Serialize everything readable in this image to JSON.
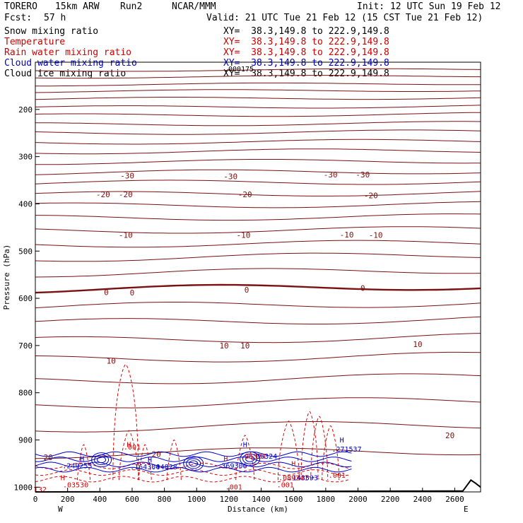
{
  "header": {
    "model": "TORERO",
    "resolution": "15km ARW",
    "run": "Run2",
    "source": "NCAR/MMM",
    "init": "Init: 12 UTC Sun 19 Feb 12",
    "fcst_label": "Fcst:",
    "fcst_value": "57 h",
    "valid": "Valid: 21 UTC Tue 21 Feb 12 (15 CST Tue 21 Feb 12)"
  },
  "legend": [
    {
      "label": "Snow mixing ratio",
      "xy": "XY=  38.3,149.8 to 222.9,149.8",
      "color": "#000000"
    },
    {
      "label": "Temperature",
      "xy": "XY=  38.3,149.8 to 222.9,149.8",
      "color": "#cc0000"
    },
    {
      "label": "Rain water mixing ratio",
      "xy": "XY=  38.3,149.8 to 222.9,149.8",
      "color": "#cc0000"
    },
    {
      "label": "Cloud water mixing ratio",
      "xy": "XY=  38.3,149.8 to 222.9,149.8",
      "color": "#0000cc"
    },
    {
      "label": "Cloud ice mixing ratio",
      "xy": "XY=  38.3,149.8 to 222.9,149.8",
      "color": "#000000"
    }
  ],
  "colors": {
    "temperature": "#7a1010",
    "freezing": "#7a1010",
    "rain": "#e00000",
    "cloud_water": "#0000cc",
    "terrain": "#000000"
  },
  "chart_data": {
    "type": "line",
    "title": "",
    "xlabel": "Distance (km)",
    "ylabel": "Pressure (hPa)",
    "xlim": [
      0,
      2760
    ],
    "ylim": [
      1010,
      100
    ],
    "x_ticks": [
      0,
      200,
      400,
      600,
      800,
      1000,
      1200,
      1400,
      1600,
      1800,
      2000,
      2200,
      2400,
      2600
    ],
    "y_ticks": [
      200,
      300,
      400,
      500,
      600,
      700,
      800,
      900,
      1000
    ],
    "x_end_labels": [
      "W",
      "E"
    ],
    "temperature_contours": [
      {
        "level": -30,
        "labels": [
          {
            "x": 570,
            "p": 340
          },
          {
            "x": 1210,
            "p": 342
          },
          {
            "x": 1830,
            "p": 338
          },
          {
            "x": 2030,
            "p": 338
          }
        ]
      },
      {
        "level": -20,
        "labels": [
          {
            "x": 420,
            "p": 380
          },
          {
            "x": 560,
            "p": 380
          },
          {
            "x": 1300,
            "p": 380
          },
          {
            "x": 2080,
            "p": 382
          }
        ]
      },
      {
        "level": -10,
        "labels": [
          {
            "x": 560,
            "p": 466
          },
          {
            "x": 1290,
            "p": 466
          },
          {
            "x": 1930,
            "p": 465
          },
          {
            "x": 2110,
            "p": 466
          }
        ]
      },
      {
        "level": 0,
        "labels": [
          {
            "x": 440,
            "p": 587
          },
          {
            "x": 600,
            "p": 588
          },
          {
            "x": 1310,
            "p": 582
          },
          {
            "x": 2030,
            "p": 578
          }
        ]
      },
      {
        "level": 10,
        "labels": [
          {
            "x": 1170,
            "p": 700
          },
          {
            "x": 1300,
            "p": 700
          },
          {
            "x": 2370,
            "p": 697
          },
          {
            "x": 470,
            "p": 732
          }
        ]
      },
      {
        "level": 20,
        "labels": [
          {
            "x": 750,
            "p": 930
          },
          {
            "x": 2570,
            "p": 890
          },
          {
            "x": 80,
            "p": 937
          }
        ]
      }
    ],
    "rain_labels": [
      ".001",
      ".001",
      ".001",
      ".001",
      ".06324",
      ".089241",
      ".03530",
      "T32"
    ],
    "cloud_water_labels": [
      ".249255",
      ".164304",
      ".04828",
      ".369306",
      ".06324",
      ".143593",
      ".271537"
    ],
    "ice_label": ".000175",
    "h_markers": [
      "H",
      "H",
      "H",
      "H",
      "H",
      "H",
      "H",
      "H"
    ]
  }
}
